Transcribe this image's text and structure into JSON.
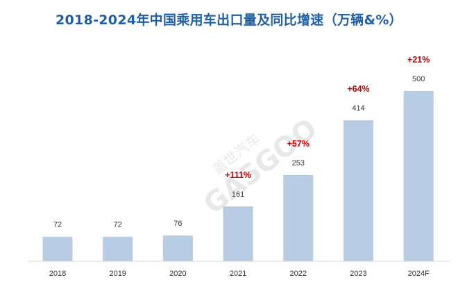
{
  "chart_data": {
    "type": "bar",
    "title": "2018-2024年中国乘用车出口量及同比增速（万辆&%）",
    "categories": [
      "2018",
      "2019",
      "2020",
      "2021",
      "2022",
      "2023",
      "2024F"
    ],
    "values": [
      72,
      72,
      76,
      161,
      253,
      414,
      500
    ],
    "value_labels": [
      "72",
      "72",
      "76",
      "161",
      "253",
      "414",
      "500"
    ],
    "growth_labels": [
      "",
      "",
      "",
      "+111%",
      "+57%",
      "+64%",
      "+21%"
    ],
    "ylim": [
      0,
      500
    ],
    "grid": false,
    "legend": "none",
    "bar_color": "#b8cce4",
    "growth_color": "#c00000",
    "title_color": "#1f5fa6"
  },
  "watermark": {
    "text": "盖世汽车",
    "latin": "GASGOO"
  }
}
